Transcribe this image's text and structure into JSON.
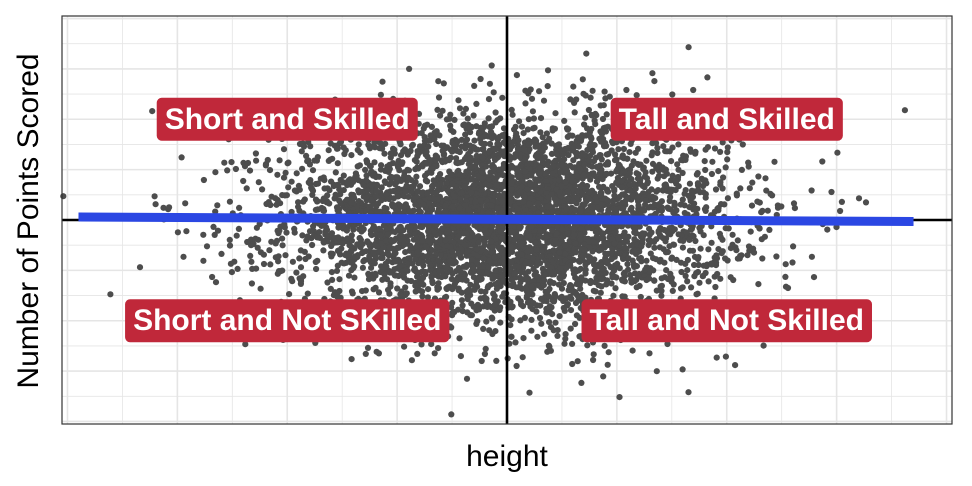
{
  "chart_data": {
    "type": "scatter",
    "title": "",
    "xlabel": "height",
    "ylabel": "Number of Points Scored",
    "xlim": [
      -4.05,
      4.05
    ],
    "ylim": [
      -4.05,
      4.05
    ],
    "x_ticks_labeled": false,
    "y_ticks_labeled": false,
    "grid": true,
    "reference_lines": {
      "x": 0,
      "y": 0
    },
    "quadrant_labels": [
      {
        "text": "Short and Skilled",
        "x": -2.0,
        "y": 2.0
      },
      {
        "text": "Tall and Skilled",
        "x": 2.0,
        "y": 2.0
      },
      {
        "text": "Short and Not SKilled",
        "x": -2.0,
        "y": -2.0
      },
      {
        "text": "Tall and Not Skilled",
        "x": 2.0,
        "y": -2.0
      }
    ],
    "series": [
      {
        "kind": "points",
        "distribution": "bivariate normal, uncorrelated",
        "n_points": 5000,
        "mean": [
          0,
          0
        ],
        "sd": [
          1,
          1
        ],
        "color": "#4d4d4d"
      },
      {
        "kind": "regression-line",
        "x": [
          -3.9,
          3.7
        ],
        "y": [
          0.06,
          -0.03
        ],
        "color": "#2b47e3"
      }
    ]
  },
  "colors": {
    "label_fill": "#c0283a",
    "grid": "#e5e5e5",
    "panel_border": "#333333"
  }
}
